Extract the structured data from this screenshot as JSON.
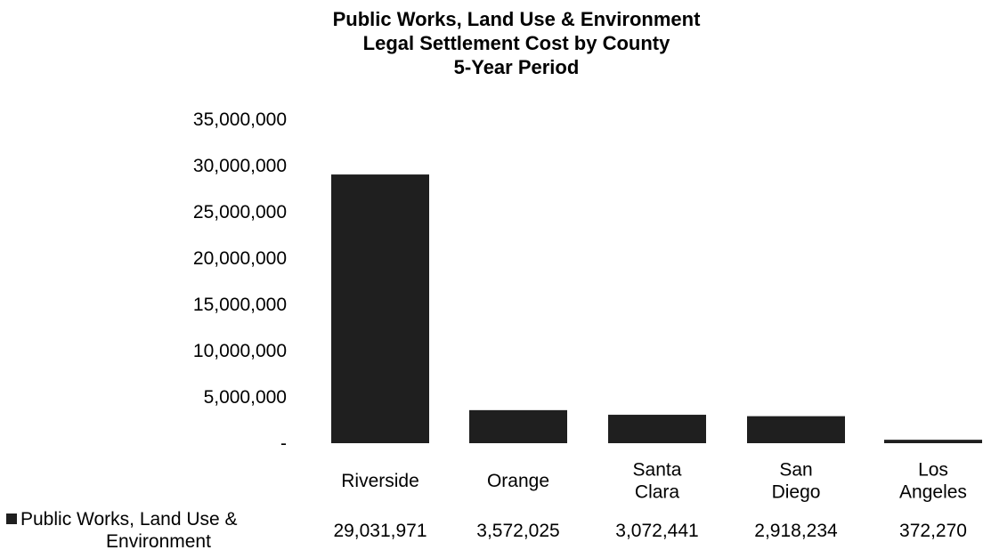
{
  "chart_data": {
    "type": "bar",
    "title_lines": [
      "Public Works, Land Use & Environment",
      "Legal Settlement Cost by County",
      "5-Year Period"
    ],
    "categories": [
      [
        "Riverside"
      ],
      [
        "Orange"
      ],
      [
        "Santa",
        "Clara"
      ],
      [
        "San",
        "Diego"
      ],
      [
        "Los",
        "Angeles"
      ]
    ],
    "series": [
      {
        "name": "Public Works, Land Use & Environment",
        "values": [
          29031971,
          3572025,
          3072441,
          2918234,
          372270
        ],
        "value_labels": [
          "29,031,971",
          "3,572,025",
          "3,072,441",
          "2,918,234",
          "372,270"
        ]
      }
    ],
    "yticks": [
      0,
      5000000,
      10000000,
      15000000,
      20000000,
      25000000,
      30000000,
      35000000
    ],
    "ytick_labels": [
      "-",
      "5,000,000",
      "10,000,000",
      "15,000,000",
      "20,000,000",
      "25,000,000",
      "30,000,000",
      "35,000,000"
    ],
    "ylim": [
      0,
      35000000
    ],
    "xlabel": "",
    "ylabel": "",
    "grid": false,
    "legend": "data-table-below",
    "legend_key_text_lines": [
      "Public Works, Land Use &",
      "Environment"
    ],
    "bar_color": "#1f1f1f"
  }
}
